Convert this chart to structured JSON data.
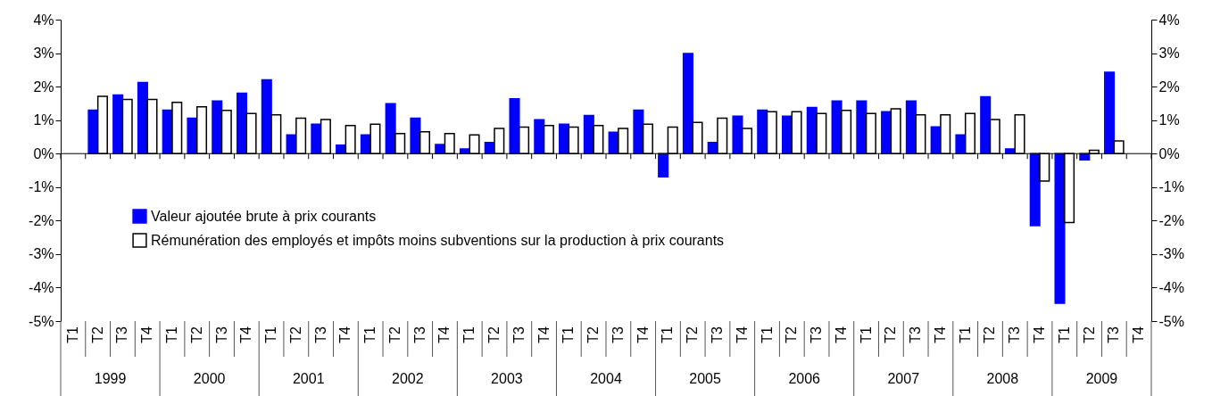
{
  "chart_data": {
    "type": "bar",
    "categories": [
      "T1",
      "T2",
      "T3",
      "T4",
      "T1",
      "T2",
      "T3",
      "T4",
      "T1",
      "T2",
      "T3",
      "T4",
      "T1",
      "T2",
      "T3",
      "T4",
      "T1",
      "T2",
      "T3",
      "T4",
      "T1",
      "T2",
      "T3",
      "T4",
      "T1",
      "T2",
      "T3",
      "T4",
      "T1",
      "T2",
      "T3",
      "T4",
      "T1",
      "T2",
      "T3",
      "T4",
      "T1",
      "T2",
      "T3",
      "T4",
      "T1",
      "T2",
      "T3",
      "T4"
    ],
    "series": [
      {
        "name": "Valeur ajoutée brute à prix courants",
        "color": "#0000ff",
        "values": [
          null,
          1.3,
          1.75,
          2.12,
          1.3,
          1.06,
          1.57,
          1.8,
          2.2,
          0.56,
          0.88,
          0.25,
          0.56,
          1.49,
          1.06,
          0.27,
          0.14,
          0.33,
          1.64,
          1.01,
          0.88,
          1.14,
          0.64,
          1.3,
          -0.69,
          2.99,
          0.33,
          1.12,
          1.3,
          1.12,
          1.38,
          1.57,
          1.57,
          1.25,
          1.57,
          0.8,
          0.56,
          1.7,
          0.14,
          -2.15,
          -4.47,
          -0.19,
          2.43,
          null
        ]
      },
      {
        "name": "Rémunération des employés et impôts moins subventions sur la production à prix courants",
        "color": "#ffffff",
        "values": [
          null,
          1.71,
          1.62,
          1.62,
          1.53,
          1.4,
          1.29,
          1.2,
          1.16,
          1.06,
          1.02,
          0.84,
          0.88,
          0.6,
          0.65,
          0.6,
          0.56,
          0.75,
          0.79,
          0.84,
          0.79,
          0.84,
          0.75,
          0.88,
          0.79,
          0.93,
          1.06,
          0.75,
          1.25,
          1.25,
          1.2,
          1.29,
          1.2,
          1.34,
          1.16,
          1.16,
          1.2,
          1.02,
          1.16,
          -0.82,
          -2.06,
          0.1,
          0.38,
          null
        ]
      }
    ],
    "ylim": [
      -5,
      4
    ],
    "yticks": [
      {
        "value": -5,
        "label": "-5%"
      },
      {
        "value": -4,
        "label": "-4%"
      },
      {
        "value": -3,
        "label": "-3%"
      },
      {
        "value": -2,
        "label": "-2%"
      },
      {
        "value": -1,
        "label": "-1%"
      },
      {
        "value": 0,
        "label": "0%"
      },
      {
        "value": 1,
        "label": "1%"
      },
      {
        "value": 2,
        "label": "2%"
      },
      {
        "value": 3,
        "label": "3%"
      },
      {
        "value": 4,
        "label": "4%"
      }
    ],
    "y2lim": [
      -5,
      4
    ],
    "y2ticks": [
      {
        "value": -5,
        "label": "-5%"
      },
      {
        "value": -4,
        "label": "-4%"
      },
      {
        "value": -3,
        "label": "-3%"
      },
      {
        "value": -2,
        "label": "-2%"
      },
      {
        "value": -1,
        "label": "-1%"
      },
      {
        "value": 0,
        "label": "0%"
      },
      {
        "value": 1,
        "label": "1%"
      },
      {
        "value": 2,
        "label": "2%"
      },
      {
        "value": 3,
        "label": "3%"
      },
      {
        "value": 4,
        "label": "4%"
      }
    ],
    "legend": "bottom left",
    "annotations": [
      "1999",
      "2000",
      "2001",
      "2002",
      "2003",
      "2004",
      "2005",
      "2006",
      "2007",
      "2008",
      "2009"
    ]
  }
}
